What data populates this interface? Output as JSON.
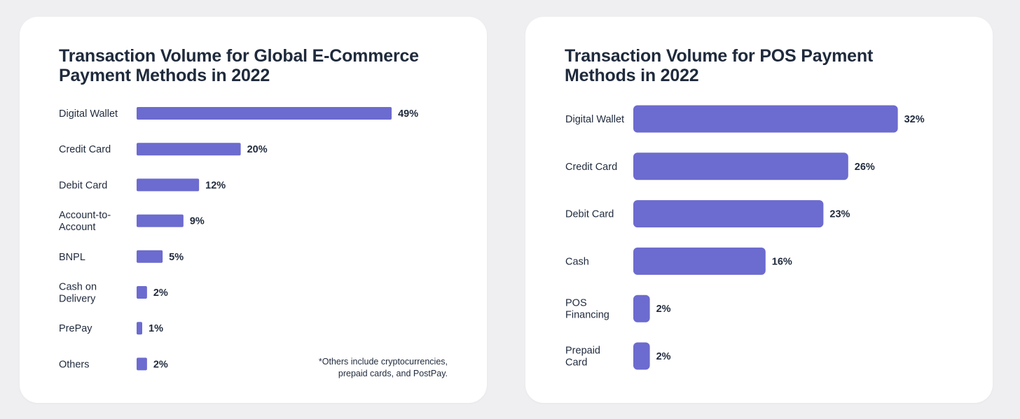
{
  "chart_data": [
    {
      "type": "bar",
      "orientation": "horizontal",
      "title": "Transaction Volume for Global E-Commerce Payment Methods in 2022",
      "categories": [
        "Digital Wallet",
        "Credit Card",
        "Debit Card",
        "Account-to-Account",
        "BNPL",
        "Cash on Delivery",
        "PrePay",
        "Others"
      ],
      "category_lines": [
        [
          "Digital Wallet"
        ],
        [
          "Credit Card"
        ],
        [
          "Debit Card"
        ],
        [
          "Account-to-",
          "Account"
        ],
        [
          "BNPL"
        ],
        [
          "Cash on",
          "Delivery"
        ],
        [
          "PrePay"
        ],
        [
          "Others"
        ]
      ],
      "values": [
        49,
        20,
        12,
        9,
        5,
        2,
        1,
        2
      ],
      "value_labels": [
        "49%",
        "20%",
        "12%",
        "9%",
        "5%",
        "2%",
        "1%",
        "2%"
      ],
      "unit": "%",
      "bar_color": "#6c6bcf",
      "footnote": [
        "*Others include cryptocurrencies,",
        "prepaid cards, and PostPay."
      ]
    },
    {
      "type": "bar",
      "orientation": "horizontal",
      "title": "Transaction Volume for POS Payment Methods in 2022",
      "categories": [
        "Digital Wallet",
        "Credit Card",
        "Debit Card",
        "Cash",
        "POS Financing",
        "Prepaid Card"
      ],
      "category_lines": [
        [
          "Digital Wallet"
        ],
        [
          "Credit Card"
        ],
        [
          "Debit Card"
        ],
        [
          "Cash"
        ],
        [
          "POS",
          "Financing"
        ],
        [
          "Prepaid",
          "Card"
        ]
      ],
      "values": [
        32,
        26,
        23,
        16,
        2,
        2
      ],
      "value_labels": [
        "32%",
        "26%",
        "23%",
        "16%",
        "2%",
        "2%"
      ],
      "unit": "%",
      "bar_color": "#6c6bcf"
    }
  ]
}
